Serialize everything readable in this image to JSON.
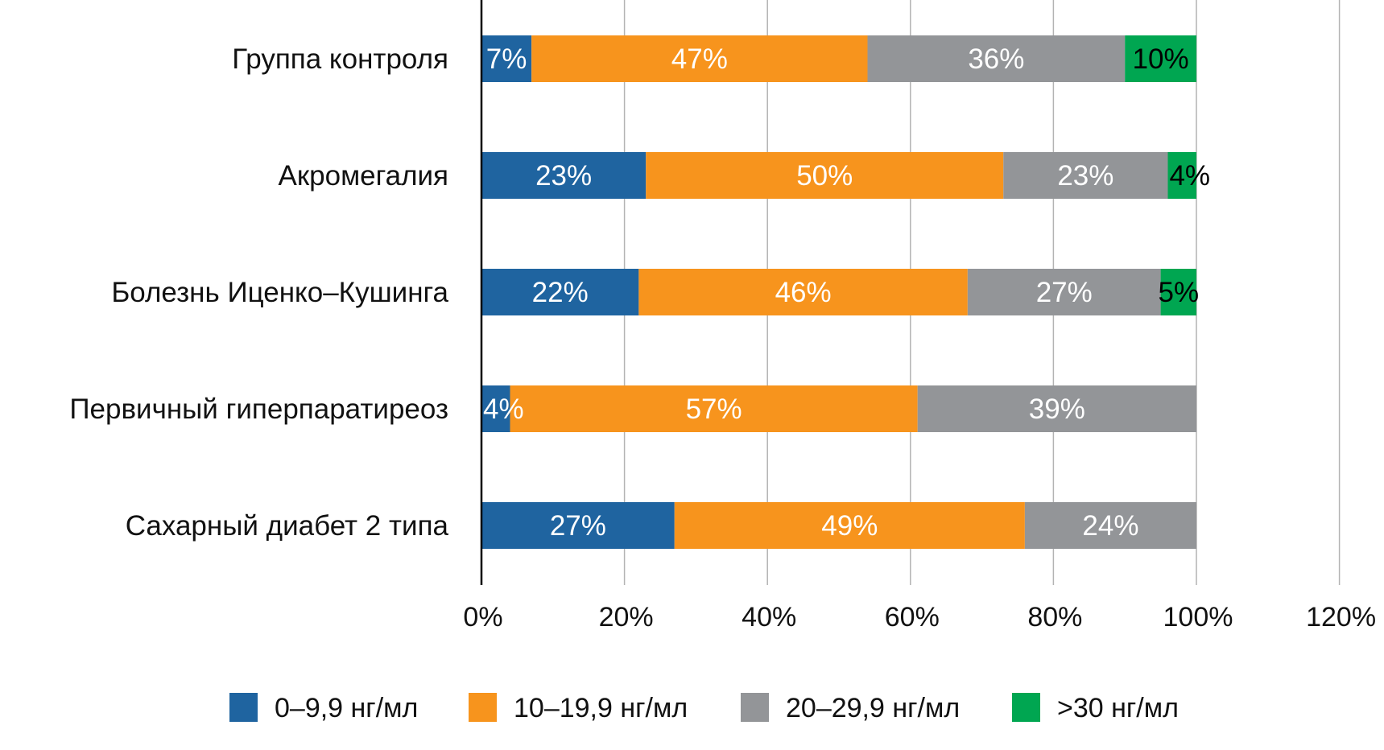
{
  "chart_data": {
    "type": "bar",
    "orientation": "horizontal",
    "stacked": true,
    "title": "",
    "xlabel": "",
    "ylabel": "",
    "xlim": [
      0,
      120
    ],
    "x_ticks": [
      0,
      20,
      40,
      60,
      80,
      100,
      120
    ],
    "x_tick_labels": [
      "0%",
      "20%",
      "40%",
      "60%",
      "80%",
      "100%",
      "120%"
    ],
    "grid": true,
    "legend_position": "bottom",
    "categories": [
      "Группа контроля",
      "Акромегалия",
      "Болезнь Иценко–Кушинга",
      "Первичный гиперпаратиреоз",
      "Сахарный диабет 2 типа"
    ],
    "series": [
      {
        "name": "0–9,9 нг/мл",
        "color": "#1f64a0",
        "label_color": "#ffffff",
        "values": [
          7,
          23,
          22,
          4,
          27
        ],
        "labels": [
          "7%",
          "23%",
          "22%",
          "4%",
          "27%"
        ]
      },
      {
        "name": "10–19,9 нг/мл",
        "color": "#f7941d",
        "label_color": "#ffffff",
        "values": [
          47,
          50,
          46,
          57,
          49
        ],
        "labels": [
          "47%",
          "50%",
          "46%",
          "57%",
          "49%"
        ]
      },
      {
        "name": "20–29,9 нг/мл",
        "color": "#939598",
        "label_color": "#ffffff",
        "values": [
          36,
          23,
          27,
          39,
          24
        ],
        "labels": [
          "36%",
          "23%",
          "27%",
          "39%",
          "24%"
        ]
      },
      {
        "name": ">30 нг/мл",
        "color": "#00a651",
        "label_color": "#000000",
        "values": [
          10,
          4,
          5,
          0,
          0
        ],
        "labels": [
          "10%",
          "4%",
          "5%",
          null,
          null
        ]
      }
    ]
  }
}
